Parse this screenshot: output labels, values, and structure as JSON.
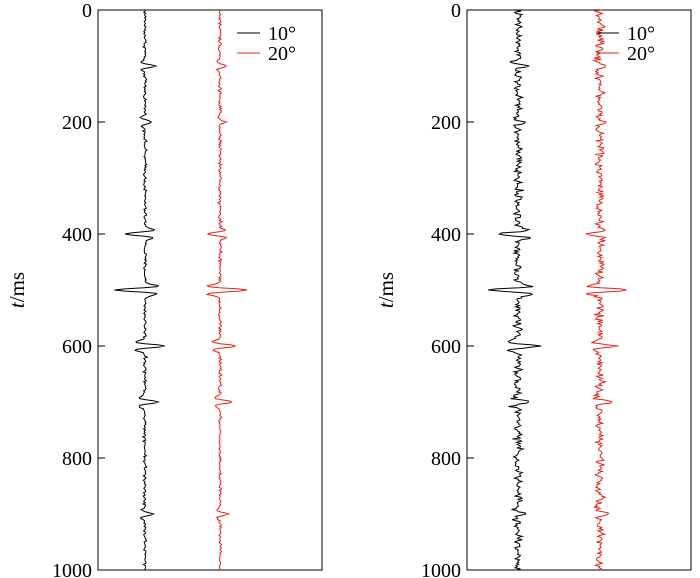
{
  "chart_data": [
    {
      "type": "line",
      "panel": "left",
      "title": "",
      "xlabel": "",
      "ylabel_italic": "t",
      "ylabel_unit": "/ms",
      "ylim": [
        0,
        1000
      ],
      "y_inverted": true,
      "y_ticks": [
        0,
        200,
        400,
        600,
        800,
        1000
      ],
      "y_tick_labels": [
        "0",
        "200",
        "400",
        "600",
        "800",
        "1000"
      ],
      "legend": {
        "placement": "top-right",
        "entries": [
          "10°",
          "20°"
        ]
      },
      "noise_level": "low",
      "series": [
        {
          "name": "10°",
          "color": "#000000",
          "events": [
            {
              "t": 100,
              "amplitude": 0.8
            },
            {
              "t": 200,
              "amplitude": 0.5
            },
            {
              "t": 400,
              "amplitude": -1.5
            },
            {
              "t": 500,
              "amplitude": -2.3
            },
            {
              "t": 600,
              "amplitude": 1.6
            },
            {
              "t": 700,
              "amplitude": 1.0
            },
            {
              "t": 900,
              "amplitude": 0.6
            }
          ]
        },
        {
          "name": "20°",
          "color": "#e8231a",
          "events": [
            {
              "t": 100,
              "amplitude": 0.5
            },
            {
              "t": 200,
              "amplitude": 0.4
            },
            {
              "t": 400,
              "amplitude": -0.9
            },
            {
              "t": 500,
              "amplitude": 2.2
            },
            {
              "t": 600,
              "amplitude": 1.3
            },
            {
              "t": 700,
              "amplitude": 0.9
            },
            {
              "t": 900,
              "amplitude": 0.6
            }
          ]
        }
      ]
    },
    {
      "type": "line",
      "panel": "right",
      "title": "",
      "xlabel": "",
      "ylabel_italic": "t",
      "ylabel_unit": "/ms",
      "ylim": [
        0,
        1000
      ],
      "y_inverted": true,
      "y_ticks": [
        0,
        200,
        400,
        600,
        800,
        1000
      ],
      "y_tick_labels": [
        "0",
        "200",
        "400",
        "600",
        "800",
        "1000"
      ],
      "legend": {
        "placement": "top-right",
        "entries": [
          "10°",
          "20°"
        ]
      },
      "noise_level": "high",
      "series": [
        {
          "name": "10°",
          "color": "#000000",
          "events": [
            {
              "t": 100,
              "amplitude": 0.8
            },
            {
              "t": 200,
              "amplitude": 0.5
            },
            {
              "t": 400,
              "amplitude": -1.5
            },
            {
              "t": 500,
              "amplitude": -2.3
            },
            {
              "t": 600,
              "amplitude": 1.6
            },
            {
              "t": 700,
              "amplitude": 1.0
            },
            {
              "t": 900,
              "amplitude": 0.6
            }
          ]
        },
        {
          "name": "20°",
          "color": "#e8231a",
          "events": [
            {
              "t": 100,
              "amplitude": 0.5
            },
            {
              "t": 200,
              "amplitude": 0.4
            },
            {
              "t": 400,
              "amplitude": -0.9
            },
            {
              "t": 500,
              "amplitude": 2.2
            },
            {
              "t": 600,
              "amplitude": 1.3
            },
            {
              "t": 700,
              "amplitude": 0.9
            },
            {
              "t": 900,
              "amplitude": 0.6
            }
          ]
        }
      ]
    }
  ]
}
